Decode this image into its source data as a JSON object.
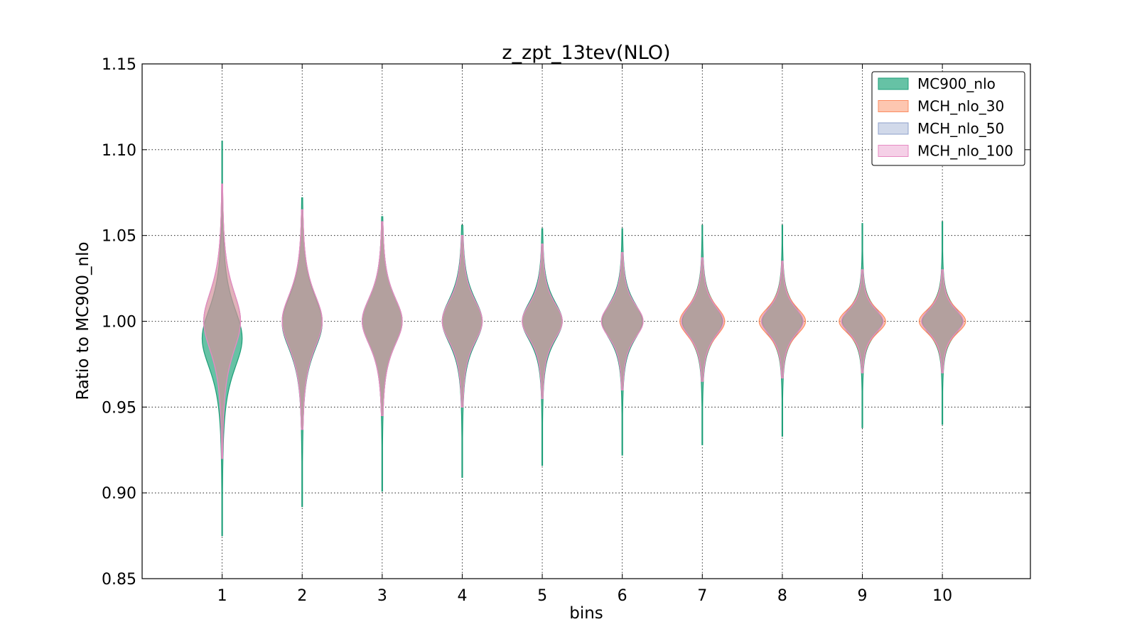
{
  "chart_data": {
    "type": "violin",
    "title": "z_zpt_13tev(NLO)",
    "xlabel": "bins",
    "ylabel": "Ratio to MC900_nlo",
    "ylim": [
      0.85,
      1.15
    ],
    "xlim": [
      0,
      11.1
    ],
    "xticks": [
      "1",
      "2",
      "3",
      "4",
      "5",
      "6",
      "7",
      "8",
      "9",
      "10"
    ],
    "yticks": [
      "0.85",
      "0.90",
      "0.95",
      "1.00",
      "1.05",
      "1.10",
      "1.15"
    ],
    "grid": true,
    "legend_position": "top-right",
    "series": [
      {
        "name": "MC900_nlo",
        "color": "#66c2a5",
        "edge": "#1b9e77",
        "alpha": 1.0,
        "violins": [
          {
            "bin": 1,
            "min": 0.875,
            "max": 1.105,
            "center": 0.99,
            "halfwidth": 0.25,
            "sigma": 0.02
          },
          {
            "bin": 2,
            "min": 0.892,
            "max": 1.072,
            "center": 0.999,
            "halfwidth": 0.25,
            "sigma": 0.018
          },
          {
            "bin": 3,
            "min": 0.901,
            "max": 1.061,
            "center": 1.0,
            "halfwidth": 0.25,
            "sigma": 0.016
          },
          {
            "bin": 4,
            "min": 0.909,
            "max": 1.056,
            "center": 1.0,
            "halfwidth": 0.25,
            "sigma": 0.015
          },
          {
            "bin": 5,
            "min": 0.916,
            "max": 1.054,
            "center": 1.0,
            "halfwidth": 0.25,
            "sigma": 0.013
          },
          {
            "bin": 6,
            "min": 0.922,
            "max": 1.054,
            "center": 1.0,
            "halfwidth": 0.25,
            "sigma": 0.012
          },
          {
            "bin": 7,
            "min": 0.928,
            "max": 1.056,
            "center": 1.0,
            "halfwidth": 0.25,
            "sigma": 0.011
          },
          {
            "bin": 8,
            "min": 0.933,
            "max": 1.056,
            "center": 1.0,
            "halfwidth": 0.25,
            "sigma": 0.01
          },
          {
            "bin": 9,
            "min": 0.938,
            "max": 1.057,
            "center": 1.0,
            "halfwidth": 0.25,
            "sigma": 0.009
          },
          {
            "bin": 10,
            "min": 0.94,
            "max": 1.058,
            "center": 1.0,
            "halfwidth": 0.25,
            "sigma": 0.009
          }
        ]
      },
      {
        "name": "MCH_nlo_30",
        "color": "#fc8d62",
        "edge": "#fc8d62",
        "alpha": 0.5,
        "violins": [
          {
            "bin": 1,
            "min": 0.92,
            "max": 1.08,
            "center": 1.0,
            "halfwidth": 0.23,
            "sigma": 0.02
          },
          {
            "bin": 2,
            "min": 0.937,
            "max": 1.065,
            "center": 1.0,
            "halfwidth": 0.25,
            "sigma": 0.018
          },
          {
            "bin": 3,
            "min": 0.945,
            "max": 1.058,
            "center": 1.0,
            "halfwidth": 0.25,
            "sigma": 0.016
          },
          {
            "bin": 4,
            "min": 0.95,
            "max": 1.05,
            "center": 1.0,
            "halfwidth": 0.25,
            "sigma": 0.014
          },
          {
            "bin": 5,
            "min": 0.955,
            "max": 1.045,
            "center": 1.0,
            "halfwidth": 0.25,
            "sigma": 0.012
          },
          {
            "bin": 6,
            "min": 0.96,
            "max": 1.04,
            "center": 1.0,
            "halfwidth": 0.26,
            "sigma": 0.011
          },
          {
            "bin": 7,
            "min": 0.965,
            "max": 1.037,
            "center": 1.0,
            "halfwidth": 0.28,
            "sigma": 0.01
          },
          {
            "bin": 8,
            "min": 0.967,
            "max": 1.035,
            "center": 1.0,
            "halfwidth": 0.29,
            "sigma": 0.009
          },
          {
            "bin": 9,
            "min": 0.97,
            "max": 1.03,
            "center": 1.0,
            "halfwidth": 0.29,
            "sigma": 0.008
          },
          {
            "bin": 10,
            "min": 0.97,
            "max": 1.03,
            "center": 1.0,
            "halfwidth": 0.29,
            "sigma": 0.008
          }
        ]
      },
      {
        "name": "MCH_nlo_50",
        "color": "#8da0cb",
        "edge": "#8da0cb",
        "alpha": 0.25,
        "violins": [
          {
            "bin": 1,
            "min": 0.92,
            "max": 1.08,
            "center": 1.0,
            "halfwidth": 0.23,
            "sigma": 0.02
          },
          {
            "bin": 2,
            "min": 0.937,
            "max": 1.065,
            "center": 1.0,
            "halfwidth": 0.25,
            "sigma": 0.018
          },
          {
            "bin": 3,
            "min": 0.945,
            "max": 1.058,
            "center": 1.0,
            "halfwidth": 0.25,
            "sigma": 0.016
          },
          {
            "bin": 4,
            "min": 0.95,
            "max": 1.05,
            "center": 1.0,
            "halfwidth": 0.25,
            "sigma": 0.014
          },
          {
            "bin": 5,
            "min": 0.955,
            "max": 1.045,
            "center": 1.0,
            "halfwidth": 0.25,
            "sigma": 0.012
          },
          {
            "bin": 6,
            "min": 0.96,
            "max": 1.04,
            "center": 1.0,
            "halfwidth": 0.26,
            "sigma": 0.011
          },
          {
            "bin": 7,
            "min": 0.965,
            "max": 1.037,
            "center": 1.0,
            "halfwidth": 0.26,
            "sigma": 0.01
          },
          {
            "bin": 8,
            "min": 0.967,
            "max": 1.035,
            "center": 1.0,
            "halfwidth": 0.26,
            "sigma": 0.009
          },
          {
            "bin": 9,
            "min": 0.97,
            "max": 1.03,
            "center": 1.0,
            "halfwidth": 0.26,
            "sigma": 0.008
          },
          {
            "bin": 10,
            "min": 0.97,
            "max": 1.03,
            "center": 1.0,
            "halfwidth": 0.26,
            "sigma": 0.008
          }
        ]
      },
      {
        "name": "MCH_nlo_100",
        "color": "#e78ac3",
        "edge": "#e78ac3",
        "alpha": 0.2,
        "violins": [
          {
            "bin": 1,
            "min": 0.92,
            "max": 1.08,
            "center": 1.0,
            "halfwidth": 0.23,
            "sigma": 0.02
          },
          {
            "bin": 2,
            "min": 0.937,
            "max": 1.065,
            "center": 1.0,
            "halfwidth": 0.25,
            "sigma": 0.018
          },
          {
            "bin": 3,
            "min": 0.945,
            "max": 1.058,
            "center": 1.0,
            "halfwidth": 0.25,
            "sigma": 0.016
          },
          {
            "bin": 4,
            "min": 0.95,
            "max": 1.05,
            "center": 1.0,
            "halfwidth": 0.25,
            "sigma": 0.014
          },
          {
            "bin": 5,
            "min": 0.955,
            "max": 1.045,
            "center": 1.0,
            "halfwidth": 0.25,
            "sigma": 0.012
          },
          {
            "bin": 6,
            "min": 0.96,
            "max": 1.04,
            "center": 1.0,
            "halfwidth": 0.26,
            "sigma": 0.011
          },
          {
            "bin": 7,
            "min": 0.965,
            "max": 1.037,
            "center": 1.0,
            "halfwidth": 0.26,
            "sigma": 0.01
          },
          {
            "bin": 8,
            "min": 0.967,
            "max": 1.035,
            "center": 1.0,
            "halfwidth": 0.26,
            "sigma": 0.009
          },
          {
            "bin": 9,
            "min": 0.97,
            "max": 1.03,
            "center": 1.0,
            "halfwidth": 0.26,
            "sigma": 0.008
          },
          {
            "bin": 10,
            "min": 0.97,
            "max": 1.03,
            "center": 1.0,
            "halfwidth": 0.26,
            "sigma": 0.008
          }
        ]
      }
    ]
  }
}
